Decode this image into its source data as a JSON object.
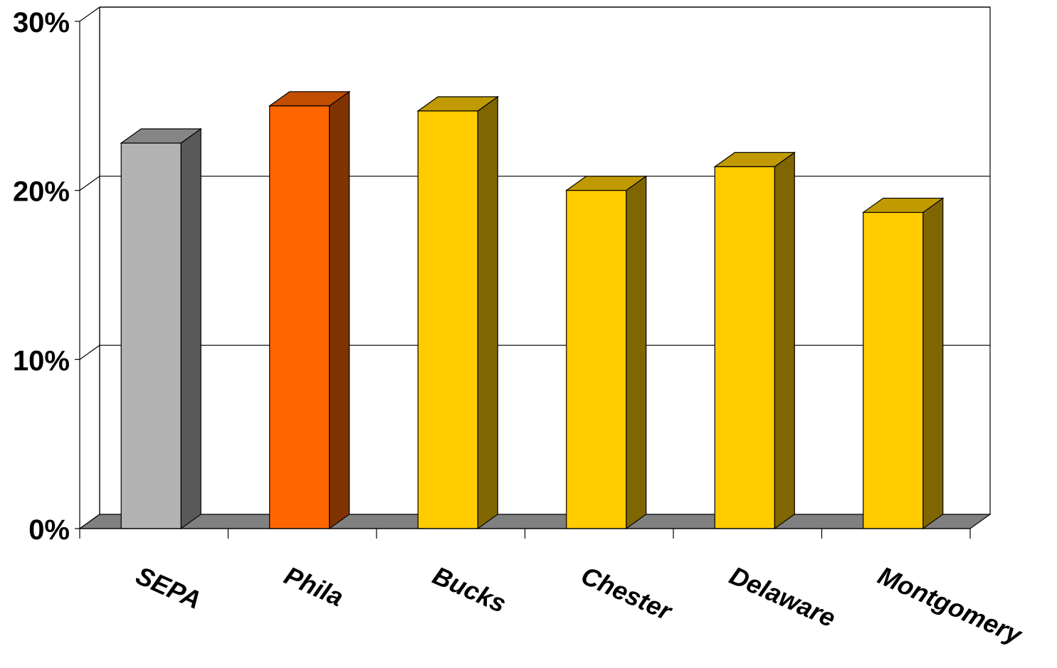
{
  "chart_data": {
    "type": "bar",
    "categories": [
      "SEPA",
      "Phila",
      "Bucks",
      "Chester",
      "Delaware",
      "Montgomery"
    ],
    "values": [
      22.8,
      25.0,
      24.7,
      20.0,
      21.4,
      18.7
    ],
    "ylim": [
      0,
      30
    ],
    "yticks": [
      0,
      10,
      20,
      30
    ],
    "ytick_labels": [
      "0%",
      "10%",
      "20%",
      "30%"
    ],
    "grid": true,
    "three_d": true,
    "colors": {
      "SEPA": {
        "front": "#b3b3b3",
        "side": "#595959",
        "top": "#858585"
      },
      "Phila": {
        "front": "#ff6600",
        "side": "#7f3300",
        "top": "#c04d00"
      },
      "Bucks": {
        "front": "#ffcc00",
        "side": "#806600",
        "top": "#c09a00"
      },
      "Chester": {
        "front": "#ffcc00",
        "side": "#806600",
        "top": "#c09a00"
      },
      "Delaware": {
        "front": "#ffcc00",
        "side": "#806600",
        "top": "#c09a00"
      },
      "Montgomery": {
        "front": "#ffcc00",
        "side": "#806600",
        "top": "#c09a00"
      }
    },
    "floor_color": "#808080"
  }
}
